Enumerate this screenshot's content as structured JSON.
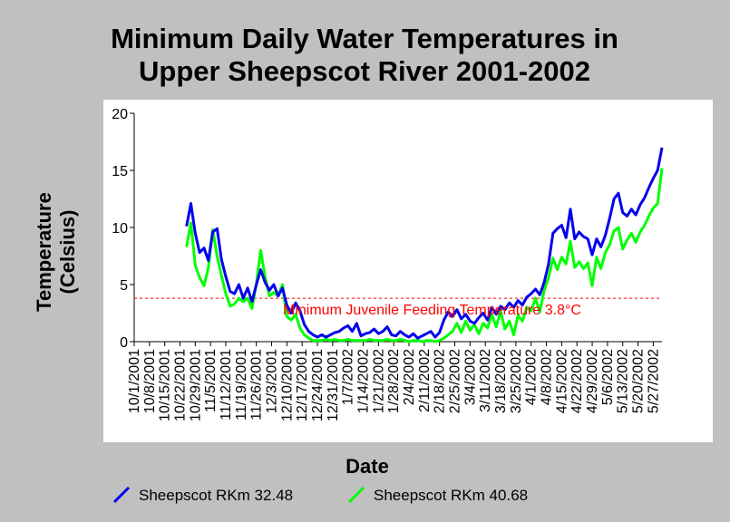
{
  "chart_data": {
    "type": "line",
    "title_line1": "Minimum Daily Water Temperatures in",
    "title_line2": "Upper Sheepscot River 2001-2002",
    "xlabel": "Date",
    "ylabel_line1": "Temperature",
    "ylabel_line2": "(Celsius)",
    "ylim": [
      0,
      20
    ],
    "yticks": [
      0,
      5,
      10,
      15,
      20
    ],
    "x_start": "10/1/2001",
    "x_end": "5/31/2002",
    "xticks": [
      "10/1/2001",
      "10/8/2001",
      "10/15/2001",
      "10/22/2001",
      "10/29/2001",
      "11/5/2001",
      "11/12/2001",
      "11/19/2001",
      "11/26/2001",
      "12/3/2001",
      "12/10/2001",
      "12/17/2001",
      "12/24/2001",
      "12/31/2001",
      "1/7/2002",
      "1/14/2002",
      "1/21/2002",
      "1/28/2002",
      "2/4/2002",
      "2/11/2002",
      "2/18/2002",
      "2/25/2002",
      "3/4/2002",
      "3/11/2002",
      "3/18/2002",
      "3/25/2002",
      "4/1/2002",
      "4/8/2002",
      "4/15/2002",
      "4/22/2002",
      "4/29/2002",
      "5/6/2002",
      "5/13/2002",
      "5/20/2002",
      "5/27/2002"
    ],
    "reference_line": {
      "value": 3.8,
      "label": "Minimum Juvenile Feeding Temperature 3.8°C",
      "color": "#ff0000"
    },
    "background_plot": "#ffffff",
    "background_page": "#c0c0c0",
    "grid": false,
    "legend_position": "bottom",
    "series": [
      {
        "name": "Sheepscot RKm 32.48",
        "color": "#0000ee",
        "x": [
          "10/25/2001",
          "10/27/2001",
          "10/29/2001",
          "10/31/2001",
          "11/2/2001",
          "11/4/2001",
          "11/6/2001",
          "11/8/2001",
          "11/10/2001",
          "11/12/2001",
          "11/14/2001",
          "11/16/2001",
          "11/18/2001",
          "11/20/2001",
          "11/22/2001",
          "11/24/2001",
          "11/26/2001",
          "11/28/2001",
          "11/30/2001",
          "12/2/2001",
          "12/4/2001",
          "12/6/2001",
          "12/8/2001",
          "12/10/2001",
          "12/12/2001",
          "12/14/2001",
          "12/16/2001",
          "12/18/2001",
          "12/20/2001",
          "12/22/2001",
          "12/24/2001",
          "12/26/2001",
          "12/28/2001",
          "12/30/2001",
          "1/1/2002",
          "1/3/2002",
          "1/5/2002",
          "1/7/2002",
          "1/9/2002",
          "1/11/2002",
          "1/13/2002",
          "1/15/2002",
          "1/17/2002",
          "1/19/2002",
          "1/21/2002",
          "1/23/2002",
          "1/25/2002",
          "1/27/2002",
          "1/29/2002",
          "1/31/2002",
          "2/2/2002",
          "2/4/2002",
          "2/6/2002",
          "2/8/2002",
          "2/10/2002",
          "2/12/2002",
          "2/14/2002",
          "2/16/2002",
          "2/18/2002",
          "2/20/2002",
          "2/22/2002",
          "2/24/2002",
          "2/26/2002",
          "2/28/2002",
          "3/2/2002",
          "3/4/2002",
          "3/6/2002",
          "3/8/2002",
          "3/10/2002",
          "3/12/2002",
          "3/14/2002",
          "3/16/2002",
          "3/18/2002",
          "3/20/2002",
          "3/22/2002",
          "3/24/2002",
          "3/26/2002",
          "3/28/2002",
          "3/30/2002",
          "4/1/2002",
          "4/3/2002",
          "4/5/2002",
          "4/7/2002",
          "4/9/2002",
          "4/11/2002",
          "4/13/2002",
          "4/15/2002",
          "4/17/2002",
          "4/19/2002",
          "4/21/2002",
          "4/23/2002",
          "4/25/2002",
          "4/27/2002",
          "4/29/2002",
          "5/1/2002",
          "5/3/2002",
          "5/5/2002",
          "5/7/2002",
          "5/9/2002",
          "5/11/2002",
          "5/13/2002",
          "5/15/2002",
          "5/17/2002",
          "5/19/2002",
          "5/21/2002",
          "5/23/2002",
          "5/25/2002",
          "5/27/2002",
          "5/29/2002",
          "5/31/2002"
        ],
        "values": [
          10.1,
          12.1,
          9.5,
          7.8,
          8.2,
          7.1,
          9.6,
          9.9,
          7.2,
          5.7,
          4.4,
          4.2,
          5.0,
          3.8,
          4.7,
          3.5,
          5.0,
          6.3,
          5.2,
          4.5,
          5.0,
          4.0,
          4.7,
          3.2,
          2.5,
          3.4,
          2.7,
          1.5,
          0.9,
          0.6,
          0.4,
          0.6,
          0.4,
          0.6,
          0.8,
          0.9,
          1.2,
          1.4,
          0.9,
          1.6,
          0.5,
          0.7,
          0.8,
          1.1,
          0.7,
          0.9,
          1.3,
          0.6,
          0.5,
          0.9,
          0.6,
          0.4,
          0.7,
          0.3,
          0.5,
          0.7,
          0.9,
          0.4,
          0.8,
          1.9,
          2.6,
          2.2,
          2.8,
          2.0,
          2.4,
          1.8,
          1.6,
          2.1,
          2.5,
          1.9,
          3.0,
          2.4,
          3.1,
          2.8,
          3.4,
          3.0,
          3.6,
          3.2,
          3.9,
          4.2,
          4.6,
          4.1,
          5.2,
          6.8,
          9.5,
          9.9,
          10.2,
          9.1,
          11.6,
          9.0,
          9.6,
          9.2,
          9.0,
          7.6,
          9.0,
          8.3,
          9.3,
          10.8,
          12.5,
          13.0,
          11.3,
          11.0,
          11.6,
          11.1,
          12.0,
          12.6,
          13.5,
          14.3,
          15.0,
          17.0
        ]
      },
      {
        "name": "Sheepscot RKm 40.68",
        "color": "#00ff00",
        "x": [
          "10/25/2001",
          "10/27/2001",
          "10/29/2001",
          "10/31/2001",
          "11/2/2001",
          "11/4/2001",
          "11/6/2001",
          "11/8/2001",
          "11/10/2001",
          "11/12/2001",
          "11/14/2001",
          "11/16/2001",
          "11/18/2001",
          "11/20/2001",
          "11/22/2001",
          "11/24/2001",
          "11/26/2001",
          "11/28/2001",
          "11/30/2001",
          "12/2/2001",
          "12/4/2001",
          "12/6/2001",
          "12/8/2001",
          "12/10/2001",
          "12/12/2001",
          "12/14/2001",
          "12/16/2001",
          "12/18/2001",
          "12/20/2001",
          "12/22/2001",
          "12/24/2001",
          "12/26/2001",
          "12/28/2001",
          "12/30/2001",
          "1/1/2002",
          "1/3/2002",
          "1/5/2002",
          "1/7/2002",
          "1/9/2002",
          "1/11/2002",
          "1/13/2002",
          "1/15/2002",
          "1/17/2002",
          "1/19/2002",
          "1/21/2002",
          "1/23/2002",
          "1/25/2002",
          "1/27/2002",
          "1/29/2002",
          "1/31/2002",
          "2/2/2002",
          "2/4/2002",
          "2/6/2002",
          "2/8/2002",
          "2/10/2002",
          "2/12/2002",
          "2/14/2002",
          "2/16/2002",
          "2/18/2002",
          "2/20/2002",
          "2/22/2002",
          "2/24/2002",
          "2/26/2002",
          "2/28/2002",
          "3/2/2002",
          "3/4/2002",
          "3/6/2002",
          "3/8/2002",
          "3/10/2002",
          "3/12/2002",
          "3/14/2002",
          "3/16/2002",
          "3/18/2002",
          "3/20/2002",
          "3/22/2002",
          "3/24/2002",
          "3/26/2002",
          "3/28/2002",
          "3/30/2002",
          "4/1/2002",
          "4/3/2002",
          "4/5/2002",
          "4/7/2002",
          "4/9/2002",
          "4/11/2002",
          "4/13/2002",
          "4/15/2002",
          "4/17/2002",
          "4/19/2002",
          "4/21/2002",
          "4/23/2002",
          "4/25/2002",
          "4/27/2002",
          "4/29/2002",
          "5/1/2002",
          "5/3/2002",
          "5/5/2002",
          "5/7/2002",
          "5/9/2002",
          "5/11/2002",
          "5/13/2002",
          "5/15/2002",
          "5/17/2002",
          "5/19/2002",
          "5/21/2002",
          "5/23/2002",
          "5/25/2002",
          "5/27/2002",
          "5/29/2002",
          "5/31/2002"
        ],
        "values": [
          8.3,
          10.4,
          6.7,
          5.6,
          4.9,
          6.5,
          9.8,
          7.5,
          5.8,
          4.2,
          3.1,
          3.3,
          3.8,
          3.5,
          3.8,
          2.9,
          5.1,
          8.0,
          5.7,
          4.0,
          4.3,
          4.0,
          5.0,
          2.2,
          1.9,
          2.4,
          1.2,
          0.6,
          0.3,
          0.1,
          0.1,
          0.1,
          0.2,
          0.1,
          0.2,
          0.1,
          0.1,
          0.2,
          0.1,
          0.1,
          0.1,
          0.1,
          0.2,
          0.1,
          0.1,
          0.1,
          0.2,
          0.1,
          0.1,
          0.2,
          0.1,
          0.0,
          0.1,
          0.1,
          0.0,
          0.1,
          0.1,
          0.0,
          0.1,
          0.3,
          0.6,
          0.9,
          1.6,
          0.8,
          1.8,
          1.0,
          1.5,
          0.7,
          1.6,
          1.2,
          2.4,
          1.3,
          2.7,
          1.1,
          1.8,
          0.6,
          2.3,
          1.8,
          3.0,
          2.7,
          3.8,
          2.6,
          4.5,
          5.6,
          7.3,
          6.3,
          7.4,
          6.8,
          8.8,
          6.5,
          7.0,
          6.4,
          6.9,
          4.9,
          7.4,
          6.4,
          7.8,
          8.5,
          9.7,
          10.0,
          8.1,
          8.9,
          9.5,
          8.7,
          9.6,
          10.2,
          11.0,
          11.7,
          12.1,
          15.2
        ]
      }
    ]
  }
}
